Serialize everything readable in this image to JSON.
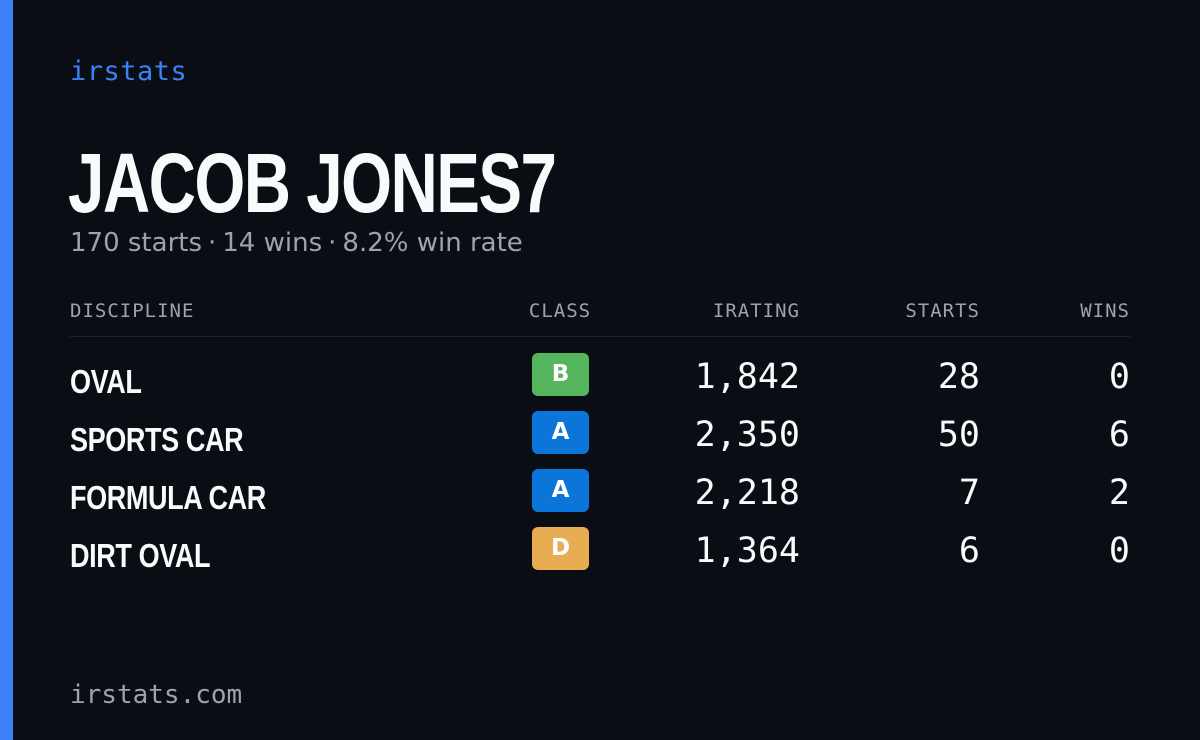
{
  "brand": "irstats",
  "player": {
    "name": "JACOB JONES7",
    "starts": "170 starts",
    "wins": "14 wins",
    "win_rate": "8.2% win rate",
    "separator": "·"
  },
  "table": {
    "headers": {
      "discipline": "DISCIPLINE",
      "class": "CLASS",
      "irating": "IRATING",
      "starts": "STARTS",
      "wins": "WINS"
    },
    "rows": [
      {
        "discipline": "OVAL",
        "class": "B",
        "irating": "1,842",
        "starts": "28",
        "wins": "0"
      },
      {
        "discipline": "SPORTS CAR",
        "class": "A",
        "irating": "2,350",
        "starts": "50",
        "wins": "6"
      },
      {
        "discipline": "FORMULA CAR",
        "class": "A",
        "irating": "2,218",
        "starts": "7",
        "wins": "2"
      },
      {
        "discipline": "DIRT OVAL",
        "class": "D",
        "irating": "1,364",
        "starts": "6",
        "wins": "0"
      }
    ]
  },
  "class_colors": {
    "A": "#0b75d9",
    "B": "#56b65e",
    "D": "#e8ac52"
  },
  "accent_color": "#3b82f6",
  "footer": "irstats.com"
}
